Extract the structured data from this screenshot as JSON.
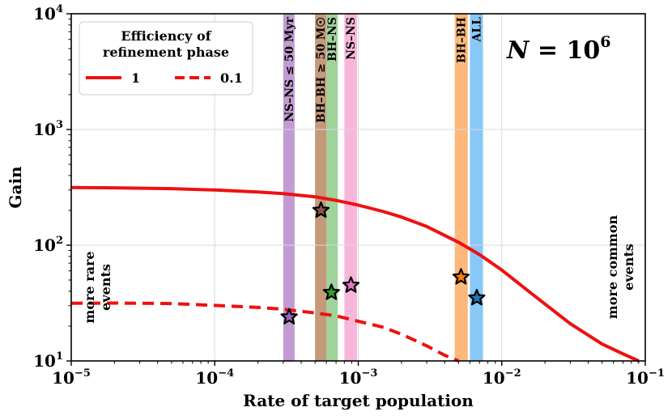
{
  "chart_data": {
    "type": "line",
    "xscale": "log",
    "yscale": "log",
    "xlim": [
      1e-05,
      0.1
    ],
    "ylim": [
      10,
      10000
    ],
    "xlabel": "Rate of target population",
    "ylabel": "Gain",
    "x_ticks": [
      {
        "value": 1e-05,
        "base": "10",
        "exp": "−5"
      },
      {
        "value": 0.0001,
        "base": "10",
        "exp": "−4"
      },
      {
        "value": 0.001,
        "base": "10",
        "exp": "−3"
      },
      {
        "value": 0.01,
        "base": "10",
        "exp": "−2"
      },
      {
        "value": 0.1,
        "base": "10",
        "exp": "−1"
      }
    ],
    "y_ticks": [
      {
        "value": 10,
        "base": "10",
        "exp": "1"
      },
      {
        "value": 100,
        "base": "10",
        "exp": "2"
      },
      {
        "value": 1000,
        "base": "10",
        "exp": "3"
      },
      {
        "value": 10000,
        "base": "10",
        "exp": "4"
      }
    ],
    "grid": true,
    "legend": {
      "title": "Efficiency of refinement phase",
      "title_lines": [
        "Efficiency of",
        "refinement phase"
      ],
      "placement": "top-left",
      "entries": [
        {
          "label": "1",
          "style": "solid"
        },
        {
          "label": "0.1",
          "style": "dashed"
        }
      ]
    },
    "series": [
      {
        "name": "1",
        "style": "solid",
        "color": "#ee1111",
        "x": [
          1e-05,
          2e-05,
          5e-05,
          0.0001,
          0.0002,
          0.0003,
          0.0005,
          0.0007,
          0.001,
          0.0015,
          0.002,
          0.003,
          0.005,
          0.007,
          0.01,
          0.015,
          0.02,
          0.03,
          0.05,
          0.07,
          0.09
        ],
        "y": [
          315,
          313,
          308,
          300,
          288,
          279,
          262,
          244,
          222,
          195,
          175,
          145,
          106,
          83,
          61,
          41,
          31,
          21,
          14,
          11.5,
          10
        ]
      },
      {
        "name": "0.1",
        "style": "dashed",
        "color": "#ee1111",
        "x": [
          1e-05,
          2e-05,
          5e-05,
          0.0001,
          0.0002,
          0.0003,
          0.0005,
          0.0007,
          0.001,
          0.0015,
          0.002,
          0.003,
          0.004,
          0.005
        ],
        "y": [
          31.5,
          31.6,
          31.3,
          30.2,
          29,
          28,
          26,
          24.5,
          22,
          19.5,
          17,
          13.5,
          11.2,
          10
        ]
      }
    ],
    "bands": [
      {
        "label": "NS–NS ≤ 50 Myr",
        "x": [
          0.0003,
          0.00036
        ],
        "color": "#c39bd3"
      },
      {
        "label": "BH–BH ≥ 50 M☉",
        "x": [
          0.0005,
          0.0006
        ],
        "color": "#c49a7a"
      },
      {
        "label": "BH–NS",
        "x": [
          0.0006,
          0.00072
        ],
        "color": "#9fd39a"
      },
      {
        "label": "NS–NS",
        "x": [
          0.0008,
          0.00098
        ],
        "color": "#f8b6da"
      },
      {
        "label": "BH–BH",
        "x": [
          0.0047,
          0.0058
        ],
        "color": "#fdb97d"
      },
      {
        "label": "ALL",
        "x": [
          0.006,
          0.0074
        ],
        "color": "#88c8f7"
      }
    ],
    "markers": [
      {
        "x": 0.00033,
        "y": 24,
        "color": "#9467bd"
      },
      {
        "x": 0.00055,
        "y": 200,
        "color": "#8c564b"
      },
      {
        "x": 0.00065,
        "y": 39,
        "color": "#2ca02c"
      },
      {
        "x": 0.00089,
        "y": 45,
        "color": "#e377c2"
      },
      {
        "x": 0.0052,
        "y": 53,
        "color": "#ff7f0e"
      },
      {
        "x": 0.0067,
        "y": 35,
        "color": "#1f77b4"
      }
    ],
    "annotations": {
      "top_right": {
        "lhs": "N",
        "eq": " = ",
        "base": "10",
        "exp": "6"
      },
      "left_note": [
        "more rare",
        "events"
      ],
      "right_note": [
        "more common",
        "events"
      ]
    }
  }
}
